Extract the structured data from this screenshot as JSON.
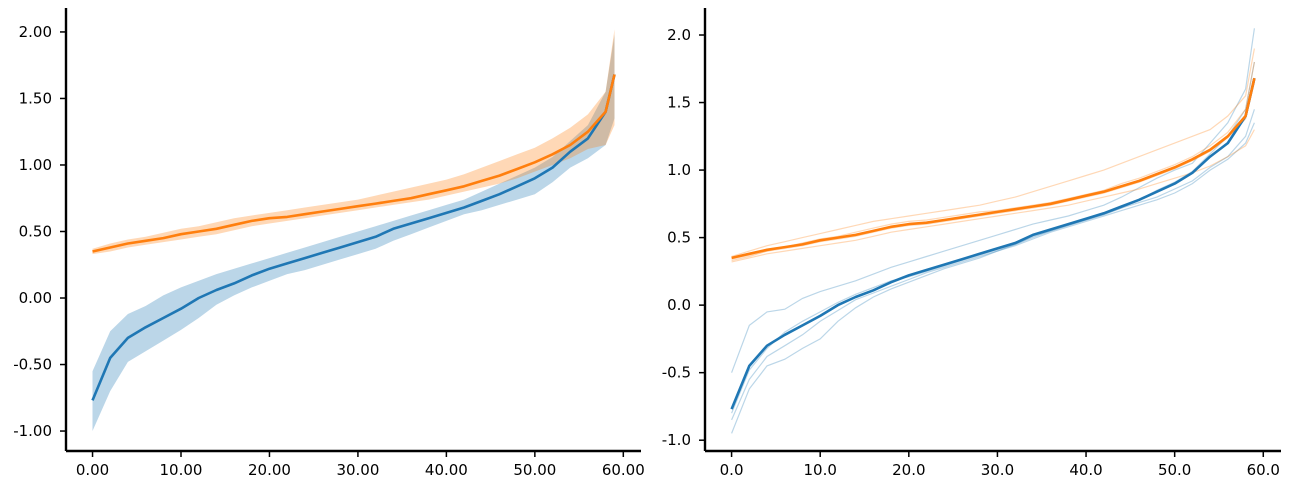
{
  "chart_data": [
    {
      "type": "line",
      "title": "",
      "xlabel": "",
      "ylabel": "",
      "xlim": [
        -3,
        62
      ],
      "ylim": [
        -1.15,
        2.18
      ],
      "x_ticks": [
        0,
        10,
        20,
        30,
        40,
        50,
        60
      ],
      "x_tick_labels": [
        "0.00",
        "10.00",
        "20.00",
        "30.00",
        "40.00",
        "50.00",
        "60.00"
      ],
      "y_ticks": [
        -1,
        -0.5,
        0,
        0.5,
        1,
        1.5,
        2
      ],
      "y_tick_labels": [
        "-1.00",
        "-0.50",
        "0.00",
        "0.50",
        "1.00",
        "1.50",
        "2.00"
      ],
      "grid": false,
      "band": "shaded",
      "series": [
        {
          "color": "#1f77b4",
          "x": [
            0,
            2,
            4,
            6,
            8,
            10,
            12,
            14,
            16,
            18,
            20,
            22,
            24,
            26,
            28,
            30,
            32,
            34,
            36,
            38,
            40,
            42,
            44,
            46,
            48,
            50,
            52,
            54,
            56,
            58,
            59
          ],
          "mean": [
            -0.77,
            -0.45,
            -0.3,
            -0.22,
            -0.15,
            -0.08,
            0.0,
            0.06,
            0.11,
            0.17,
            0.22,
            0.26,
            0.3,
            0.34,
            0.38,
            0.42,
            0.46,
            0.52,
            0.56,
            0.6,
            0.64,
            0.68,
            0.73,
            0.78,
            0.84,
            0.9,
            0.98,
            1.1,
            1.2,
            1.4,
            1.68
          ],
          "lower": [
            -1.0,
            -0.7,
            -0.48,
            -0.4,
            -0.32,
            -0.24,
            -0.15,
            -0.05,
            0.02,
            0.08,
            0.13,
            0.18,
            0.21,
            0.25,
            0.29,
            0.33,
            0.37,
            0.43,
            0.48,
            0.53,
            0.58,
            0.63,
            0.66,
            0.7,
            0.74,
            0.78,
            0.87,
            0.98,
            1.05,
            1.15,
            1.35
          ],
          "upper": [
            -0.55,
            -0.25,
            -0.12,
            -0.06,
            0.02,
            0.08,
            0.13,
            0.18,
            0.22,
            0.26,
            0.3,
            0.34,
            0.38,
            0.42,
            0.46,
            0.5,
            0.54,
            0.58,
            0.62,
            0.66,
            0.7,
            0.74,
            0.8,
            0.86,
            0.92,
            0.98,
            1.06,
            1.18,
            1.3,
            1.55,
            1.98
          ]
        },
        {
          "color": "#ff7f0e",
          "x": [
            0,
            2,
            4,
            6,
            8,
            10,
            12,
            14,
            16,
            18,
            20,
            22,
            24,
            26,
            28,
            30,
            32,
            34,
            36,
            38,
            40,
            42,
            44,
            46,
            48,
            50,
            52,
            54,
            56,
            58,
            59
          ],
          "mean": [
            0.35,
            0.38,
            0.41,
            0.43,
            0.45,
            0.48,
            0.5,
            0.52,
            0.55,
            0.58,
            0.6,
            0.61,
            0.63,
            0.65,
            0.67,
            0.69,
            0.71,
            0.73,
            0.75,
            0.78,
            0.81,
            0.84,
            0.88,
            0.92,
            0.97,
            1.02,
            1.08,
            1.15,
            1.25,
            1.4,
            1.68
          ],
          "lower": [
            0.33,
            0.35,
            0.38,
            0.4,
            0.42,
            0.44,
            0.46,
            0.48,
            0.51,
            0.54,
            0.56,
            0.58,
            0.6,
            0.62,
            0.64,
            0.66,
            0.68,
            0.7,
            0.72,
            0.74,
            0.77,
            0.8,
            0.83,
            0.86,
            0.9,
            0.95,
            1.0,
            1.05,
            1.12,
            1.15,
            1.3
          ],
          "upper": [
            0.37,
            0.41,
            0.44,
            0.46,
            0.49,
            0.52,
            0.54,
            0.57,
            0.6,
            0.62,
            0.64,
            0.66,
            0.68,
            0.7,
            0.72,
            0.74,
            0.77,
            0.8,
            0.83,
            0.86,
            0.89,
            0.93,
            0.98,
            1.03,
            1.08,
            1.13,
            1.2,
            1.28,
            1.38,
            1.55,
            2.02
          ]
        }
      ]
    },
    {
      "type": "line",
      "title": "",
      "xlabel": "",
      "ylabel": "",
      "xlim": [
        -3,
        62
      ],
      "ylim": [
        -1.08,
        2.2
      ],
      "x_ticks": [
        0,
        10,
        20,
        30,
        40,
        50,
        60
      ],
      "x_tick_labels": [
        "0.0",
        "10.0",
        "20.0",
        "30.0",
        "40.0",
        "50.0",
        "60.0"
      ],
      "y_ticks": [
        -1,
        -0.5,
        0,
        0.5,
        1,
        1.5,
        2
      ],
      "y_tick_labels": [
        "-1.0",
        "-0.5",
        "0.0",
        "0.5",
        "1.0",
        "1.5",
        "2.0"
      ],
      "grid": false,
      "band": "individual runs",
      "series": [
        {
          "color": "#1f77b4",
          "x": [
            0,
            2,
            4,
            6,
            8,
            10,
            12,
            14,
            16,
            18,
            20,
            22,
            24,
            26,
            28,
            30,
            32,
            34,
            36,
            38,
            40,
            42,
            44,
            46,
            48,
            50,
            52,
            54,
            56,
            58,
            59
          ],
          "mean": [
            -0.77,
            -0.45,
            -0.3,
            -0.22,
            -0.15,
            -0.08,
            0.0,
            0.06,
            0.11,
            0.17,
            0.22,
            0.26,
            0.3,
            0.34,
            0.38,
            0.42,
            0.46,
            0.52,
            0.56,
            0.6,
            0.64,
            0.68,
            0.73,
            0.78,
            0.84,
            0.9,
            0.98,
            1.1,
            1.2,
            1.4,
            1.68
          ],
          "runs": [
            [
              -0.5,
              -0.15,
              -0.05,
              -0.03,
              0.05,
              0.1,
              0.14,
              0.18,
              0.23,
              0.28,
              0.32,
              0.36,
              0.4,
              0.44,
              0.48,
              0.52,
              0.56,
              0.6,
              0.63,
              0.66,
              0.7,
              0.74,
              0.8,
              0.87,
              0.94,
              1.0,
              1.05,
              1.2,
              1.35,
              1.6,
              2.05
            ],
            [
              -0.95,
              -0.62,
              -0.45,
              -0.4,
              -0.32,
              -0.25,
              -0.12,
              -0.02,
              0.06,
              0.12,
              0.17,
              0.22,
              0.27,
              0.31,
              0.35,
              0.4,
              0.45,
              0.5,
              0.55,
              0.59,
              0.63,
              0.67,
              0.72,
              0.76,
              0.8,
              0.86,
              0.92,
              1.02,
              1.1,
              1.25,
              1.45
            ],
            [
              -0.85,
              -0.55,
              -0.38,
              -0.3,
              -0.22,
              -0.12,
              -0.04,
              0.04,
              0.09,
              0.14,
              0.19,
              0.24,
              0.28,
              0.32,
              0.36,
              0.4,
              0.44,
              0.49,
              0.54,
              0.58,
              0.62,
              0.66,
              0.7,
              0.74,
              0.78,
              0.83,
              0.9,
              1.0,
              1.08,
              1.2,
              1.35
            ],
            [
              -0.8,
              -0.48,
              -0.32,
              -0.2,
              -0.12,
              -0.05,
              0.02,
              0.08,
              0.13,
              0.18,
              0.21,
              0.25,
              0.29,
              0.33,
              0.37,
              0.41,
              0.45,
              0.51,
              0.55,
              0.59,
              0.63,
              0.67,
              0.72,
              0.78,
              0.85,
              0.91,
              0.99,
              1.12,
              1.25,
              1.45,
              1.8
            ]
          ]
        },
        {
          "color": "#ff7f0e",
          "x": [
            0,
            2,
            4,
            6,
            8,
            10,
            12,
            14,
            16,
            18,
            20,
            22,
            24,
            26,
            28,
            30,
            32,
            34,
            36,
            38,
            40,
            42,
            44,
            46,
            48,
            50,
            52,
            54,
            56,
            58,
            59
          ],
          "mean": [
            0.35,
            0.38,
            0.41,
            0.43,
            0.45,
            0.48,
            0.5,
            0.52,
            0.55,
            0.58,
            0.6,
            0.61,
            0.63,
            0.65,
            0.67,
            0.69,
            0.71,
            0.73,
            0.75,
            0.78,
            0.81,
            0.84,
            0.88,
            0.92,
            0.97,
            1.02,
            1.08,
            1.15,
            1.25,
            1.4,
            1.68
          ],
          "runs": [
            [
              0.36,
              0.4,
              0.44,
              0.47,
              0.5,
              0.53,
              0.56,
              0.59,
              0.62,
              0.64,
              0.66,
              0.68,
              0.7,
              0.72,
              0.74,
              0.77,
              0.8,
              0.84,
              0.88,
              0.92,
              0.96,
              1.0,
              1.05,
              1.1,
              1.15,
              1.2,
              1.25,
              1.3,
              1.4,
              1.55,
              1.9
            ],
            [
              0.32,
              0.35,
              0.38,
              0.4,
              0.42,
              0.44,
              0.46,
              0.48,
              0.51,
              0.54,
              0.56,
              0.58,
              0.6,
              0.62,
              0.64,
              0.66,
              0.68,
              0.7,
              0.72,
              0.74,
              0.77,
              0.8,
              0.83,
              0.86,
              0.9,
              0.94,
              0.98,
              1.03,
              1.1,
              1.18,
              1.3
            ],
            [
              0.34,
              0.37,
              0.4,
              0.42,
              0.44,
              0.47,
              0.49,
              0.51,
              0.54,
              0.57,
              0.59,
              0.6,
              0.62,
              0.64,
              0.66,
              0.68,
              0.7,
              0.72,
              0.74,
              0.77,
              0.8,
              0.83,
              0.87,
              0.91,
              0.96,
              1.01,
              1.07,
              1.14,
              1.24,
              1.38,
              1.65
            ],
            [
              0.33,
              0.36,
              0.4,
              0.43,
              0.46,
              0.49,
              0.51,
              0.54,
              0.57,
              0.6,
              0.62,
              0.63,
              0.65,
              0.67,
              0.69,
              0.7,
              0.72,
              0.74,
              0.76,
              0.79,
              0.82,
              0.85,
              0.9,
              0.94,
              0.99,
              1.04,
              1.1,
              1.18,
              1.28,
              1.45,
              1.8
            ]
          ]
        }
      ]
    }
  ]
}
